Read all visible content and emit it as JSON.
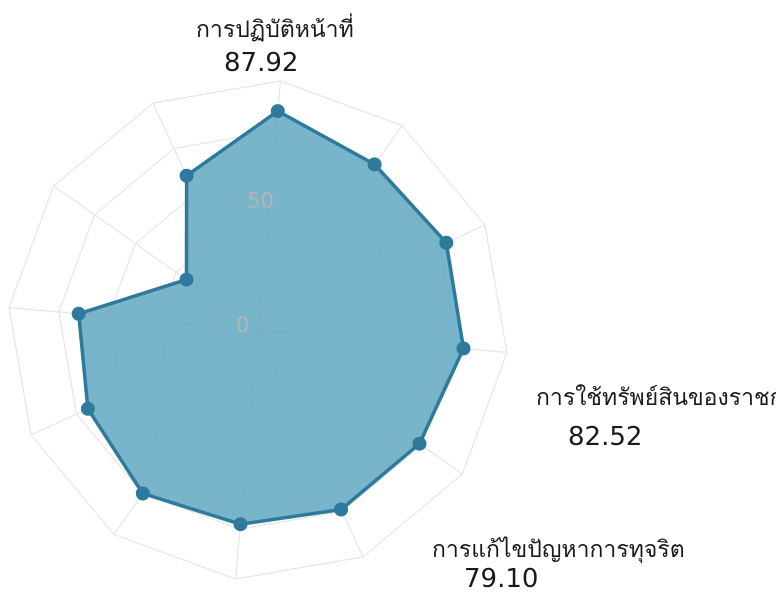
{
  "chart_data": {
    "type": "radar",
    "axis_count": 12,
    "scale": {
      "min": 0,
      "max": 100,
      "tick_labels": [
        "0",
        "50"
      ]
    },
    "values": [
      87.92,
      81,
      83,
      82.52,
      79,
      79.1,
      78,
      80,
      75,
      72,
      35,
      68
    ],
    "labeled_axes": [
      {
        "index": 0,
        "name": "การปฏิบัติหน้าที่",
        "value_text": "87.92"
      },
      {
        "index": 3,
        "name": "การใช้ทรัพย์สินของราชก",
        "value_text": "82.52"
      },
      {
        "index": 5,
        "name": "การแก้ไขปัญหาการทุจริต",
        "value_text": "79.10"
      }
    ],
    "colors": {
      "fill": "#5aa5c0",
      "stroke": "#2e7a9c",
      "point": "#2e7a9c",
      "grid": "#e6e6e6",
      "tick": "#b5b5b5"
    }
  }
}
